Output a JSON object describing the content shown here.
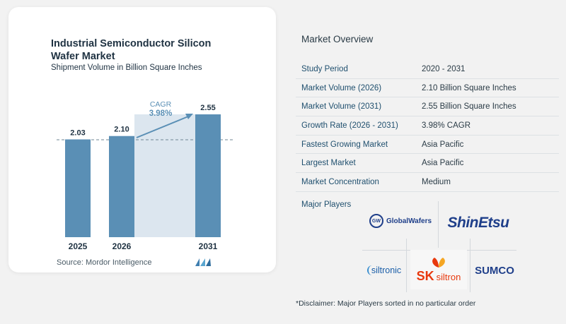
{
  "chart_data": {
    "type": "bar",
    "title": "Industrial Semiconductor Silicon Wafer Market",
    "subtitle": "Shipment Volume in Billion Square Inches",
    "categories": [
      "2025",
      "2026",
      "2031"
    ],
    "values": [
      2.03,
      2.1,
      2.55
    ],
    "value_labels": [
      "2.03",
      "2.10",
      "2.55"
    ],
    "cagr_label": "CAGR",
    "cagr_value": "3.98%",
    "bar_color": "#5a8fb5",
    "band_color": "#dce6ef"
  },
  "source": "Source:  Mordor Intelligence",
  "overview": {
    "title": "Market Overview",
    "rows": [
      {
        "key": "Study Period",
        "value": "2020 - 2031"
      },
      {
        "key": "Market Volume (2026)",
        "value": "2.10 Billion Square Inches"
      },
      {
        "key": "Market Volume (2031)",
        "value": "2.55 Billion Square Inches"
      },
      {
        "key": "Growth Rate (2026 - 2031)",
        "value": "3.98% CAGR"
      },
      {
        "key": "Fastest Growing Market",
        "value": "Asia Pacific"
      },
      {
        "key": "Largest Market",
        "value": "Asia Pacific"
      },
      {
        "key": "Market Concentration",
        "value": "Medium"
      }
    ]
  },
  "players": {
    "title": "Major Players",
    "logos": {
      "globalwafers": "GlobalWafers",
      "globalwafers_mark": "GW",
      "shinetsu": "ShinEtsu",
      "siltronic": "siltronic",
      "sk_mark": "SK",
      "sk_name": "siltron",
      "sumco": "SUMCO"
    }
  },
  "disclaimer": "*Disclaimer: Major Players sorted in no particular order"
}
